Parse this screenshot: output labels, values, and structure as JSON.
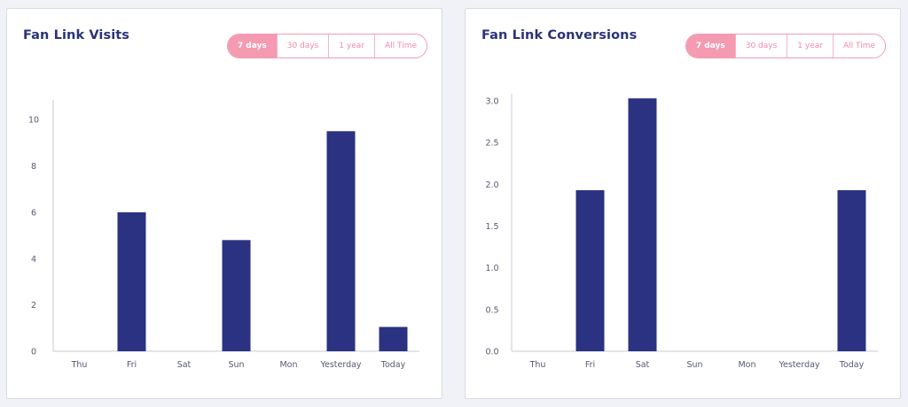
{
  "colors": {
    "bar": "#2a3281",
    "accent": "#f49ab1",
    "title": "#2b3279"
  },
  "visits": {
    "title": "Fan Link Visits",
    "ranges": [
      "7 days",
      "30 days",
      "1 year",
      "All Time"
    ],
    "active_range": "7 days"
  },
  "conversions": {
    "title": "Fan Link Conversions",
    "ranges": [
      "7 days",
      "30 days",
      "1 year",
      "All Time"
    ],
    "active_range": "7 days"
  },
  "chart_data": [
    {
      "type": "bar",
      "title": "Fan Link Visits",
      "categories": [
        "Thu",
        "Fri",
        "Sat",
        "Sun",
        "Mon",
        "Yesterday",
        "Today"
      ],
      "values": [
        0,
        6,
        0,
        4.8,
        0,
        9.5,
        1.05
      ],
      "ylim": [
        0,
        11
      ],
      "yticks": [
        0,
        2,
        4,
        6,
        8,
        10
      ],
      "ytick_labels": [
        "0",
        "2",
        "4",
        "6",
        "8",
        "10"
      ],
      "grid": false
    },
    {
      "type": "bar",
      "title": "Fan Link Conversions",
      "categories": [
        "Thu",
        "Fri",
        "Sat",
        "Sun",
        "Mon",
        "Yesterday",
        "Today"
      ],
      "values": [
        0,
        1.93,
        3.03,
        0,
        0,
        0,
        1.93
      ],
      "ylim": [
        0,
        3.0
      ],
      "yticks": [
        0,
        0.5,
        1.0,
        1.5,
        2.0,
        2.5,
        3.0
      ],
      "ytick_labels": [
        "0.0",
        "0.5",
        "1.0",
        "1.5",
        "2.0",
        "2.5",
        "3.0"
      ],
      "grid": false
    }
  ]
}
